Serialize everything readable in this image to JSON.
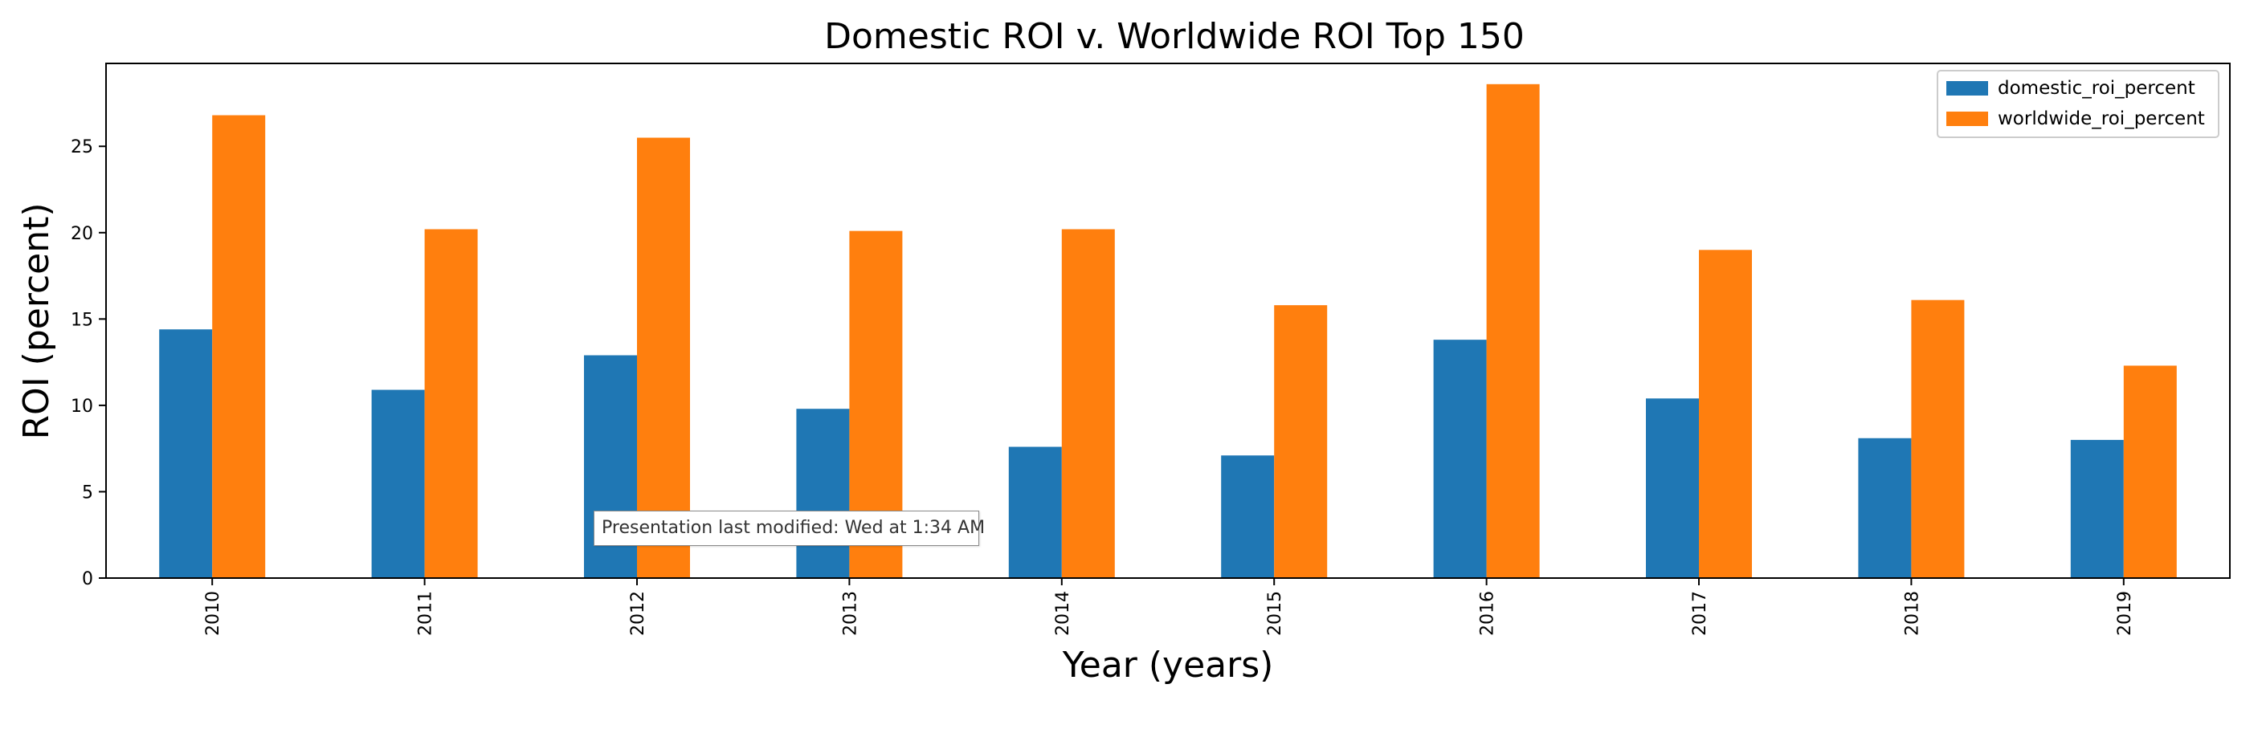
{
  "chart_data": {
    "type": "bar",
    "title": "Domestic ROI v. Worldwide ROI Top 150",
    "xlabel": "Year (years)",
    "ylabel": "ROI (percent)",
    "categories": [
      "2010",
      "2011",
      "2012",
      "2013",
      "2014",
      "2015",
      "2016",
      "2017",
      "2018",
      "2019"
    ],
    "series": [
      {
        "name": "domestic_roi_percent",
        "color": "#1f77b4",
        "values": [
          14.4,
          10.9,
          12.9,
          9.8,
          7.6,
          7.1,
          13.8,
          10.4,
          8.1,
          8.0
        ]
      },
      {
        "name": "worldwide_roi_percent",
        "color": "#ff7f0e",
        "values": [
          26.8,
          20.2,
          25.5,
          20.1,
          20.2,
          15.8,
          28.6,
          19.0,
          16.1,
          12.3
        ]
      }
    ],
    "ylim": [
      0,
      29.8
    ],
    "yticks": [
      0,
      5,
      10,
      15,
      20,
      25
    ],
    "grid": false,
    "legend_position": "top-right"
  },
  "tooltip": {
    "text": "Presentation last modified: Wed at 1:34 AM"
  }
}
